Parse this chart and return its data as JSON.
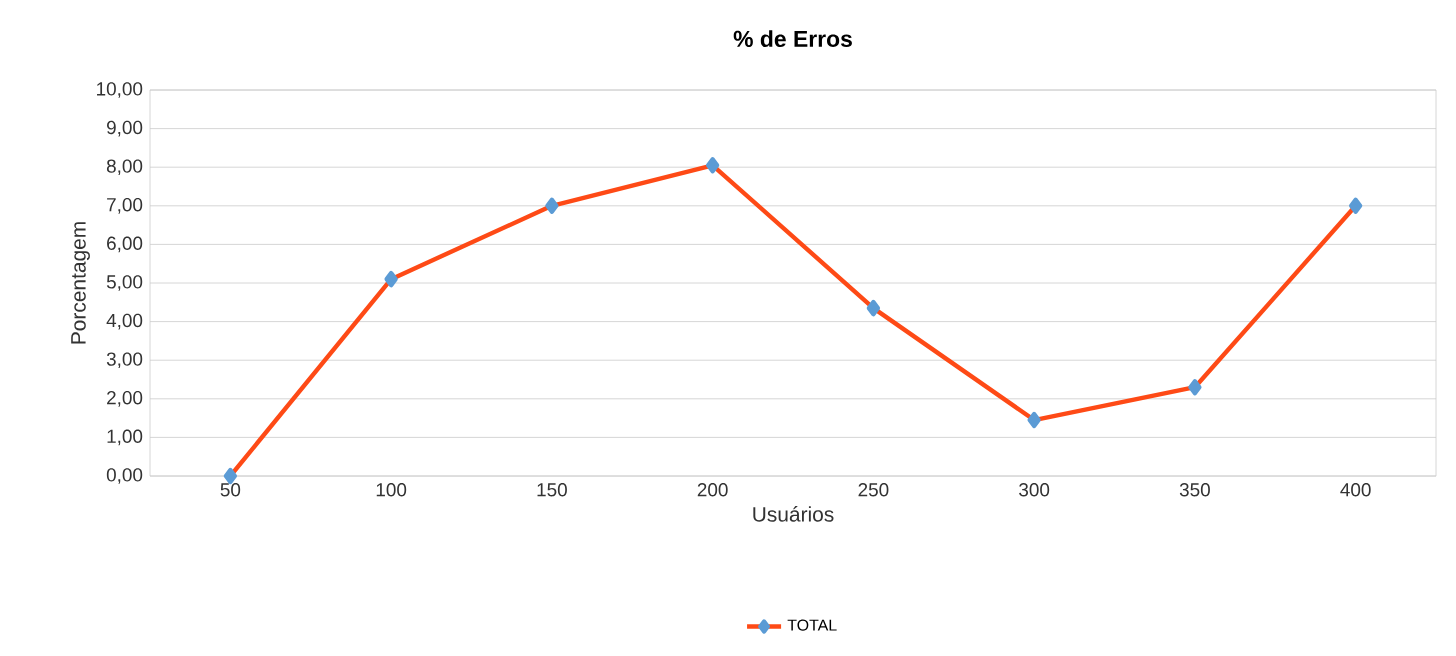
{
  "chart_data": {
    "type": "line",
    "title": "%  de Erros",
    "xlabel": "Usuários",
    "ylabel": "Porcentagem",
    "categories": [
      "50",
      "100",
      "150",
      "200",
      "250",
      "300",
      "350",
      "400"
    ],
    "series": [
      {
        "name": "TOTAL",
        "color": "#fe4a16",
        "colors": [
          "#5b9bd5",
          "#5b9bd5",
          "#5b9bd5",
          "#5b9bd5",
          "#5b9bd5",
          "#5b9bd5",
          "#5b9bd5",
          "#5b9bd5"
        ],
        "values": [
          0,
          5.1,
          7.0,
          8.05,
          4.35,
          1.45,
          2.3,
          7.0
        ]
      }
    ],
    "ylim": [
      0,
      10
    ],
    "yticks": [
      {
        "value": 0,
        "label": "0,00"
      },
      {
        "value": 1,
        "label": "1,00"
      },
      {
        "value": 2,
        "label": "2,00"
      },
      {
        "value": 3,
        "label": "3,00"
      },
      {
        "value": 4,
        "label": "4,00"
      },
      {
        "value": 5,
        "label": "5,00"
      },
      {
        "value": 6,
        "label": "6,00"
      },
      {
        "value": 7,
        "label": "7,00"
      },
      {
        "value": 8,
        "label": "8,00"
      },
      {
        "value": 9,
        "label": "9,00"
      },
      {
        "value": 10,
        "label": "10,00"
      }
    ],
    "grid": "y",
    "legend": "bottom",
    "marker": "diamond",
    "line_style": "solid"
  }
}
